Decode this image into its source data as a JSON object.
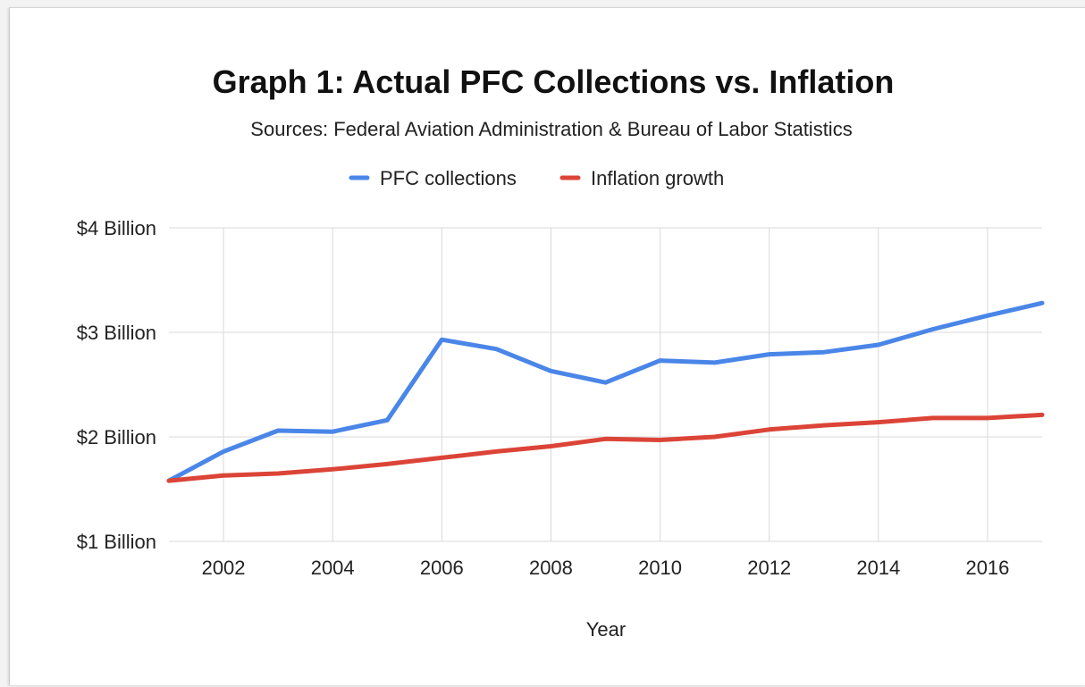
{
  "chart_data": {
    "type": "line",
    "title": "Graph 1: Actual PFC Collections vs. Inflation",
    "subtitle": "Sources: Federal Aviation Administration & Bureau of Labor Statistics",
    "xlabel": "Year",
    "ylabel": "",
    "x": [
      2001,
      2002,
      2003,
      2004,
      2005,
      2006,
      2007,
      2008,
      2009,
      2010,
      2011,
      2012,
      2013,
      2014,
      2015,
      2016,
      2017
    ],
    "xlim": [
      2001,
      2017
    ],
    "xticks": [
      2002,
      2004,
      2006,
      2008,
      2010,
      2012,
      2014,
      2016
    ],
    "ylim": [
      1,
      4
    ],
    "yticks": [
      {
        "value": 4,
        "label": "$4 Billion"
      },
      {
        "value": 3,
        "label": "$3 Billion"
      },
      {
        "value": 2,
        "label": "$2 Billion"
      },
      {
        "value": 1,
        "label": "$1 Billion"
      }
    ],
    "grid": true,
    "legend_position": "top",
    "series": [
      {
        "name": "PFC collections",
        "color": "#4a86e8",
        "values": [
          1.58,
          1.86,
          2.06,
          2.05,
          2.16,
          2.93,
          2.84,
          2.63,
          2.52,
          2.73,
          2.71,
          2.79,
          2.81,
          2.88,
          3.03,
          3.16,
          3.28
        ]
      },
      {
        "name": "Inflation growth",
        "color": "#db4437",
        "values": [
          1.58,
          1.63,
          1.65,
          1.69,
          1.74,
          1.8,
          1.86,
          1.91,
          1.98,
          1.97,
          2.0,
          2.07,
          2.11,
          2.14,
          2.18,
          2.18,
          2.21
        ]
      }
    ]
  }
}
